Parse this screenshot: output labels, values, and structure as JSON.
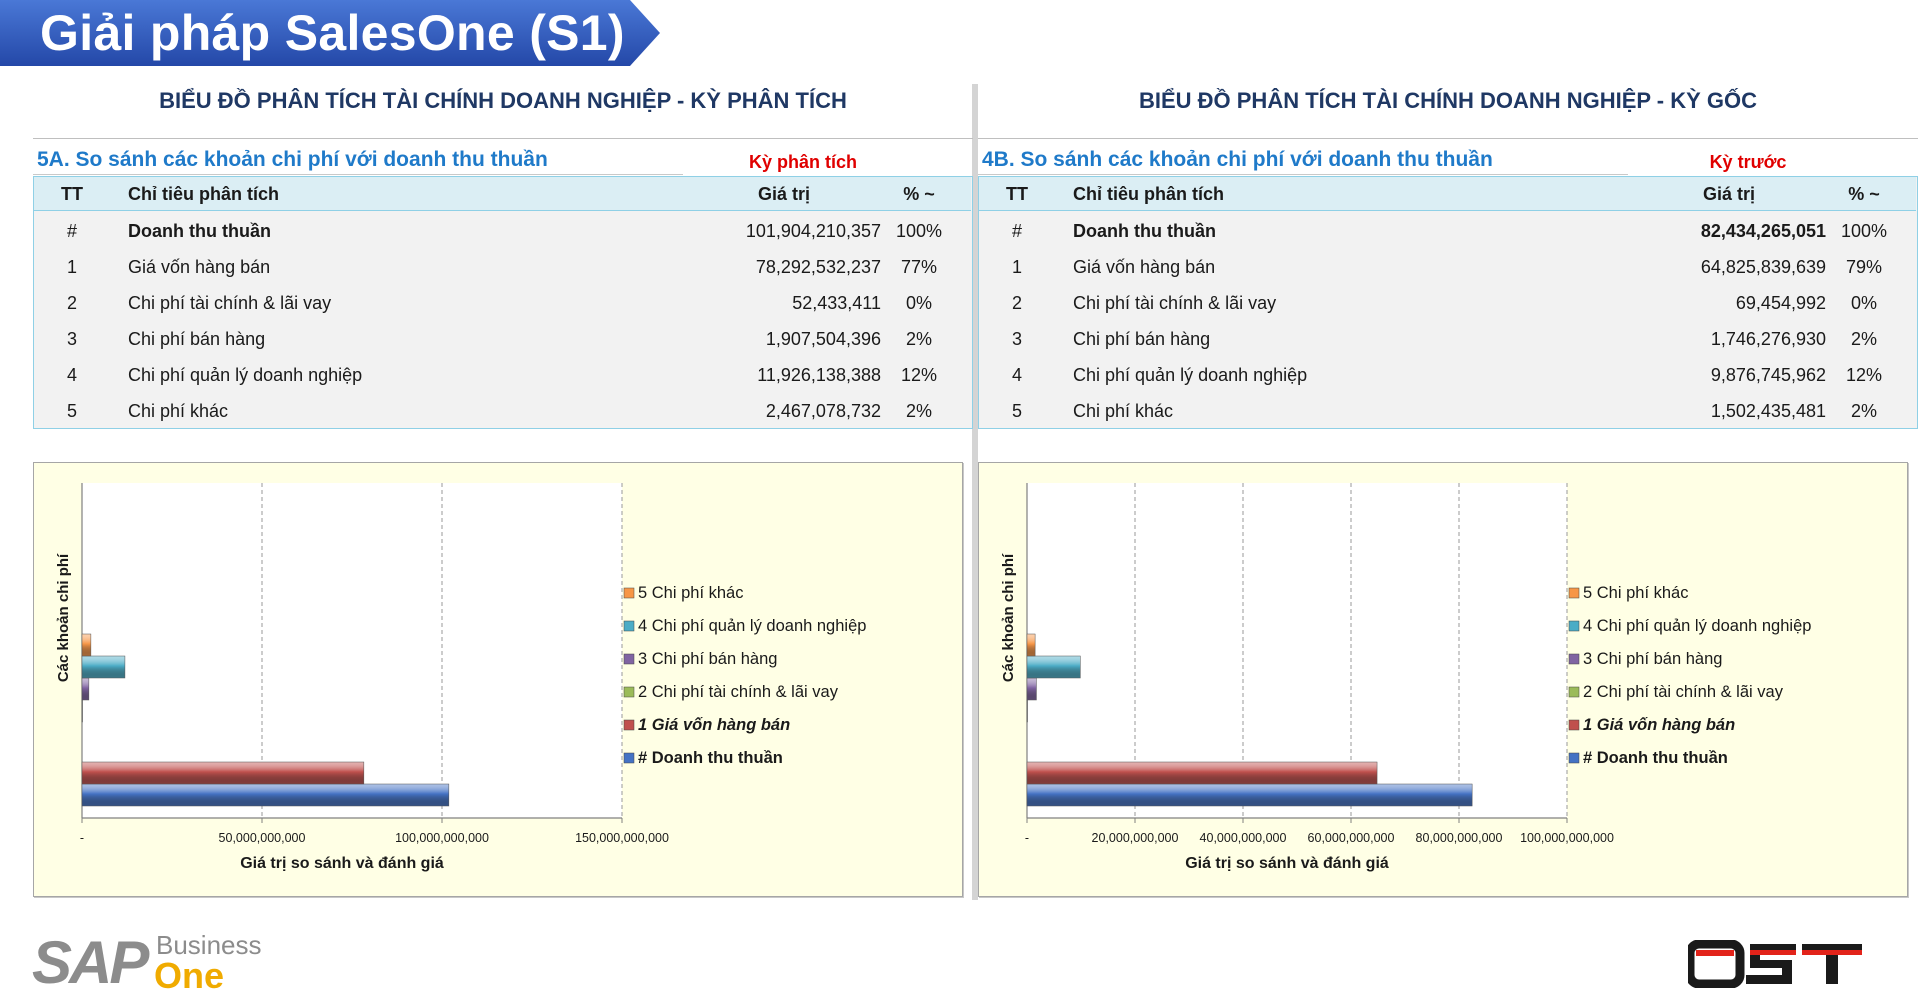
{
  "banner": {
    "title": "Giải pháp SalesOne (S1)",
    "color": "#2f5bb7"
  },
  "panels": [
    {
      "heading": "BIỂU ĐỒ PHÂN TÍCH TÀI CHÍNH DOANH NGHIỆP - KỲ PHÂN TÍCH",
      "section_title": "5A. So sánh các khoản chi phí với doanh thu thuần",
      "period_label": "Kỳ phân tích",
      "columns": {
        "tt": "TT",
        "name": "Chỉ tiêu phân tích",
        "value": "Giá trị",
        "pct": "% ~"
      },
      "rows": [
        {
          "tt": "#",
          "name": "Doanh thu thuần",
          "value": "101,904,210,357",
          "pct": "100%"
        },
        {
          "tt": "1",
          "name": "Giá vốn hàng bán",
          "value": "78,292,532,237",
          "pct": "77%"
        },
        {
          "tt": "2",
          "name": "Chi phí tài chính & lãi vay",
          "value": "52,433,411",
          "pct": "0%"
        },
        {
          "tt": "3",
          "name": "Chi phí bán hàng",
          "value": "1,907,504,396",
          "pct": "2%"
        },
        {
          "tt": "4",
          "name": "Chi phí quản lý doanh nghiệp",
          "value": "11,926,138,388",
          "pct": "12%"
        },
        {
          "tt": "5",
          "name": "Chi phí khác",
          "value": "2,467,078,732",
          "pct": "2%"
        }
      ]
    },
    {
      "heading": "BIỂU ĐỒ PHÂN TÍCH TÀI CHÍNH DOANH NGHIỆP - KỲ GỐC",
      "section_title": "4B. So sánh các khoản chi phí với doanh thu thuần",
      "period_label": "Kỳ trước",
      "columns": {
        "tt": "TT",
        "name": "Chỉ tiêu phân tích",
        "value": "Giá trị",
        "pct": "% ~"
      },
      "rows": [
        {
          "tt": "#",
          "name": "Doanh thu thuần",
          "value": "82,434,265,051",
          "pct": "100%"
        },
        {
          "tt": "1",
          "name": "Giá vốn hàng bán",
          "value": "64,825,839,639",
          "pct": "79%"
        },
        {
          "tt": "2",
          "name": "Chi phí tài chính & lãi vay",
          "value": "69,454,992",
          "pct": "0%"
        },
        {
          "tt": "3",
          "name": "Chi phí bán hàng",
          "value": "1,746,276,930",
          "pct": "2%"
        },
        {
          "tt": "4",
          "name": "Chi phí quản lý doanh nghiệp",
          "value": "9,876,745,962",
          "pct": "12%"
        },
        {
          "tt": "5",
          "name": "Chi phí khác",
          "value": "1,502,435,481",
          "pct": "2%"
        }
      ]
    }
  ],
  "chart_data": [
    {
      "type": "bar",
      "orientation": "horizontal",
      "xlabel": "Giá trị so sánh và đánh giá",
      "ylabel": "Các khoản chi phí",
      "xlim": [
        0,
        150000000000
      ],
      "xticks": [
        0,
        50000000000,
        100000000000,
        150000000000
      ],
      "xtick_labels": [
        "-",
        "50,000,000,000",
        "100,000,000,000",
        "150,000,000,000"
      ],
      "grid": true,
      "legend_position": "right",
      "series": [
        {
          "name": "# Doanh thu thuần",
          "value": 101904210357,
          "color": "#4472c4",
          "bold": true,
          "italic": false
        },
        {
          "name": "1 Giá vốn hàng bán",
          "value": 78292532237,
          "color": "#c0504d",
          "bold": true,
          "italic": true
        },
        {
          "name": "2 Chi phí tài chính & lãi vay",
          "value": 52433411,
          "color": "#9bbb59",
          "bold": false,
          "italic": false
        },
        {
          "name": "3 Chi phí bán hàng",
          "value": 1907504396,
          "color": "#8064a2",
          "bold": false,
          "italic": false
        },
        {
          "name": "4 Chi phí quản lý doanh nghiệp",
          "value": 11926138388,
          "color": "#4bacc6",
          "bold": false,
          "italic": false
        },
        {
          "name": "5 Chi phí khác",
          "value": 2467078732,
          "color": "#f79646",
          "bold": false,
          "italic": false
        }
      ]
    },
    {
      "type": "bar",
      "orientation": "horizontal",
      "xlabel": "Giá trị so sánh và đánh giá",
      "ylabel": "Các khoản chi phí",
      "xlim": [
        0,
        100000000000
      ],
      "xticks": [
        0,
        20000000000,
        40000000000,
        60000000000,
        80000000000,
        100000000000
      ],
      "xtick_labels": [
        "-",
        "20,000,000,000",
        "40,000,000,000",
        "60,000,000,000",
        "80,000,000,000",
        "100,000,000,000"
      ],
      "grid": true,
      "legend_position": "right",
      "series": [
        {
          "name": "# Doanh thu thuần",
          "value": 82434265051,
          "color": "#4472c4",
          "bold": true,
          "italic": false
        },
        {
          "name": "1 Giá vốn hàng bán",
          "value": 64825839639,
          "color": "#c0504d",
          "bold": true,
          "italic": true
        },
        {
          "name": "2 Chi phí tài chính & lãi vay",
          "value": 69454992,
          "color": "#9bbb59",
          "bold": false,
          "italic": false
        },
        {
          "name": "3 Chi phí bán hàng",
          "value": 1746276930,
          "color": "#8064a2",
          "bold": false,
          "italic": false
        },
        {
          "name": "4 Chi phí quản lý doanh nghiệp",
          "value": 9876745962,
          "color": "#4bacc6",
          "bold": false,
          "italic": false
        },
        {
          "name": "5 Chi phí khác",
          "value": 1502435481,
          "color": "#f79646",
          "bold": false,
          "italic": false
        }
      ]
    }
  ],
  "logos": {
    "sap": {
      "letters": "SAP",
      "business": "Business",
      "one": "One"
    },
    "ost": {
      "text": "OST",
      "accent": "#e2231a"
    }
  }
}
